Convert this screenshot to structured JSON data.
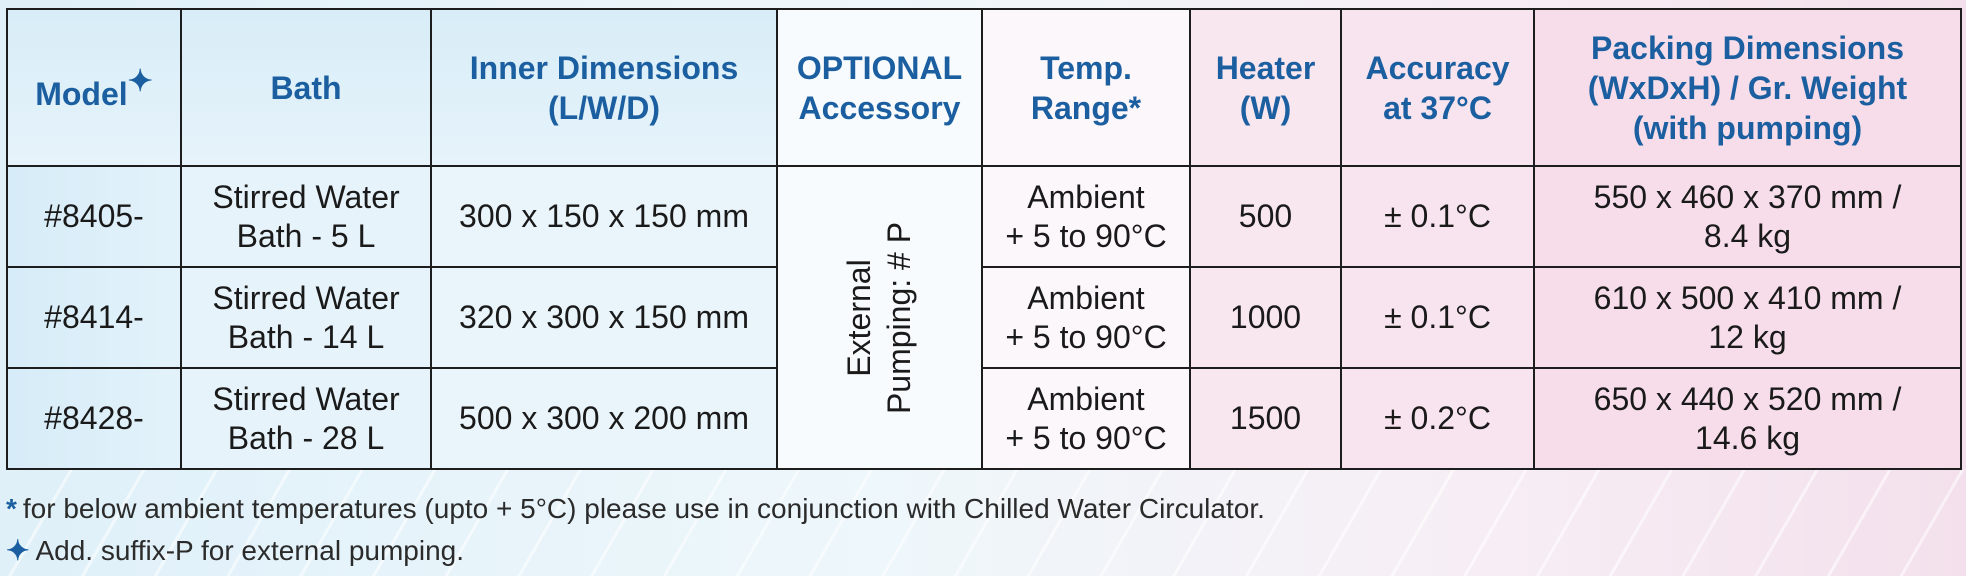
{
  "headers": {
    "model": "Model",
    "model_mark": "✦",
    "bath": "Bath",
    "inner_dims": [
      "Inner Dimensions",
      "(L/W/D)"
    ],
    "optional": [
      "OPTIONAL",
      "Accessory"
    ],
    "temp_range": [
      "Temp.",
      "Range*"
    ],
    "heater": [
      "Heater",
      "(W)"
    ],
    "accuracy": [
      "Accuracy",
      "at 37°C"
    ],
    "packing": [
      "Packing Dimensions",
      "(WxDxH) / Gr. Weight",
      "(with pumping)"
    ]
  },
  "accessory": [
    "External",
    "Pumping: # P"
  ],
  "rows": [
    {
      "model": "#8405-",
      "bath": [
        "Stirred Water",
        "Bath - 5 L"
      ],
      "inner": "300 x 150 x 150 mm",
      "temp": [
        "Ambient",
        "+ 5 to 90°C"
      ],
      "heater": "500",
      "accuracy": "± 0.1°C",
      "packing": [
        "550 x 460 x 370 mm /",
        "8.4 kg"
      ]
    },
    {
      "model": "#8414-",
      "bath": [
        "Stirred Water",
        "Bath - 14 L"
      ],
      "inner": "320 x 300 x 150 mm",
      "temp": [
        "Ambient",
        "+ 5 to 90°C"
      ],
      "heater": "1000",
      "accuracy": "± 0.1°C",
      "packing": [
        "610 x 500 x 410 mm /",
        "12 kg"
      ]
    },
    {
      "model": "#8428-",
      "bath": [
        "Stirred Water",
        "Bath - 28 L"
      ],
      "inner": "500 x 300 x 200 mm",
      "temp": [
        "Ambient",
        "+ 5 to 90°C"
      ],
      "heater": "1500",
      "accuracy": "± 0.2°C",
      "packing": [
        "650 x 440 x 520 mm /",
        "14.6 kg"
      ]
    }
  ],
  "notes": [
    {
      "mark": "*",
      "text": "for below ambient temperatures (upto + 5°C) please use in conjunction with Chilled Water Circulator."
    },
    {
      "mark": "✦",
      "text": "Add. suffix-P for external pumping."
    }
  ],
  "colors": {
    "header_text": "#1b5fa0",
    "body_text": "#1a1a1a",
    "border": "#1d1d1d"
  }
}
